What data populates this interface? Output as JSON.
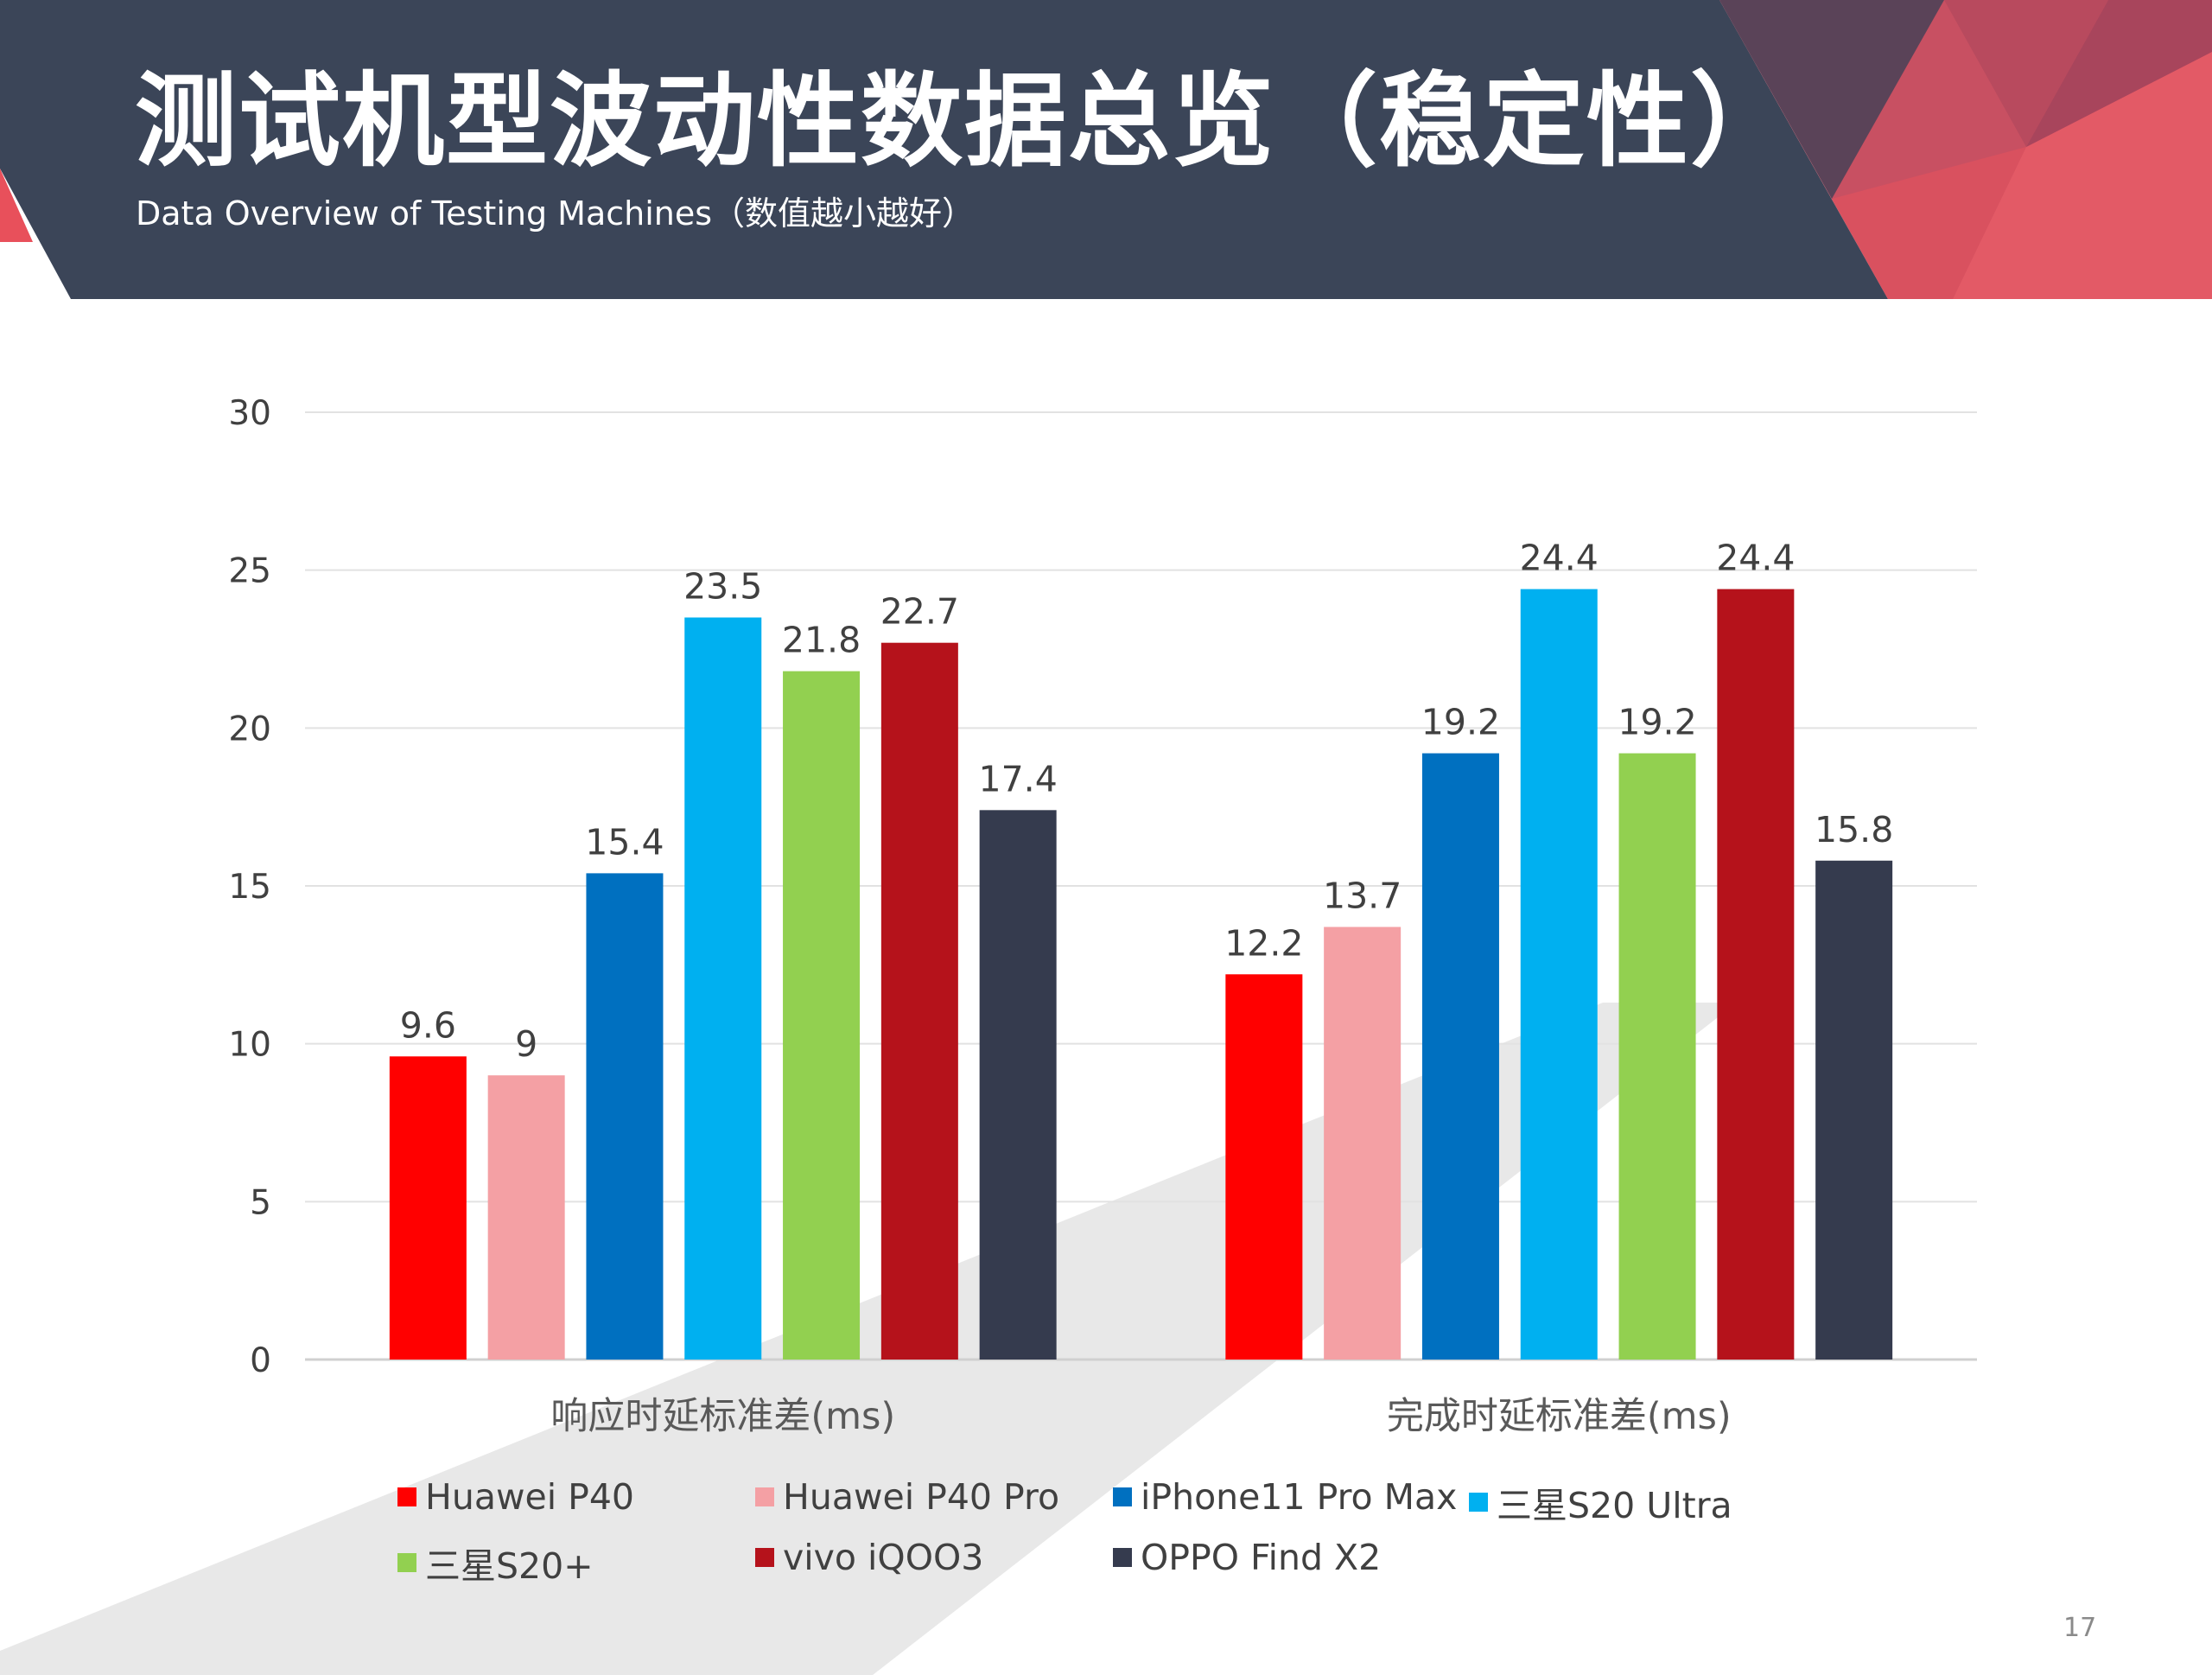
{
  "header": {
    "title": "测试机型波动性数据总览（稳定性）",
    "subtitle": "Data Overview of Testing Machines（数值越小越好）",
    "colors": {
      "band": "#3b4558",
      "accent": "#e8505b"
    }
  },
  "chart_data": {
    "type": "bar",
    "categories": [
      "响应时延标准差(ms)",
      "完成时延标准差(ms)"
    ],
    "ylim": [
      0,
      30
    ],
    "yticks": [
      0,
      5,
      10,
      15,
      20,
      25,
      30
    ],
    "grid": true,
    "legend_position": "bottom",
    "series": [
      {
        "name": "Huawei P40",
        "color": "#ff0000",
        "values": [
          9.6,
          12.2
        ]
      },
      {
        "name": "Huawei P40 Pro",
        "color": "#f4a0a4",
        "values": [
          9,
          13.7
        ]
      },
      {
        "name": "iPhone11 Pro Max",
        "color": "#0070c0",
        "values": [
          15.4,
          19.2
        ]
      },
      {
        "name": "三星S20 Ultra",
        "color": "#00b0f0",
        "values": [
          23.5,
          24.4
        ]
      },
      {
        "name": "三星S20+",
        "color": "#92d050",
        "values": [
          21.8,
          19.2
        ]
      },
      {
        "name": "vivo iQOO3",
        "color": "#b5121b",
        "values": [
          22.7,
          24.4
        ]
      },
      {
        "name": "OPPO Find X2",
        "color": "#353b4e",
        "values": [
          17.4,
          15.8
        ]
      }
    ]
  },
  "page_number": "17"
}
